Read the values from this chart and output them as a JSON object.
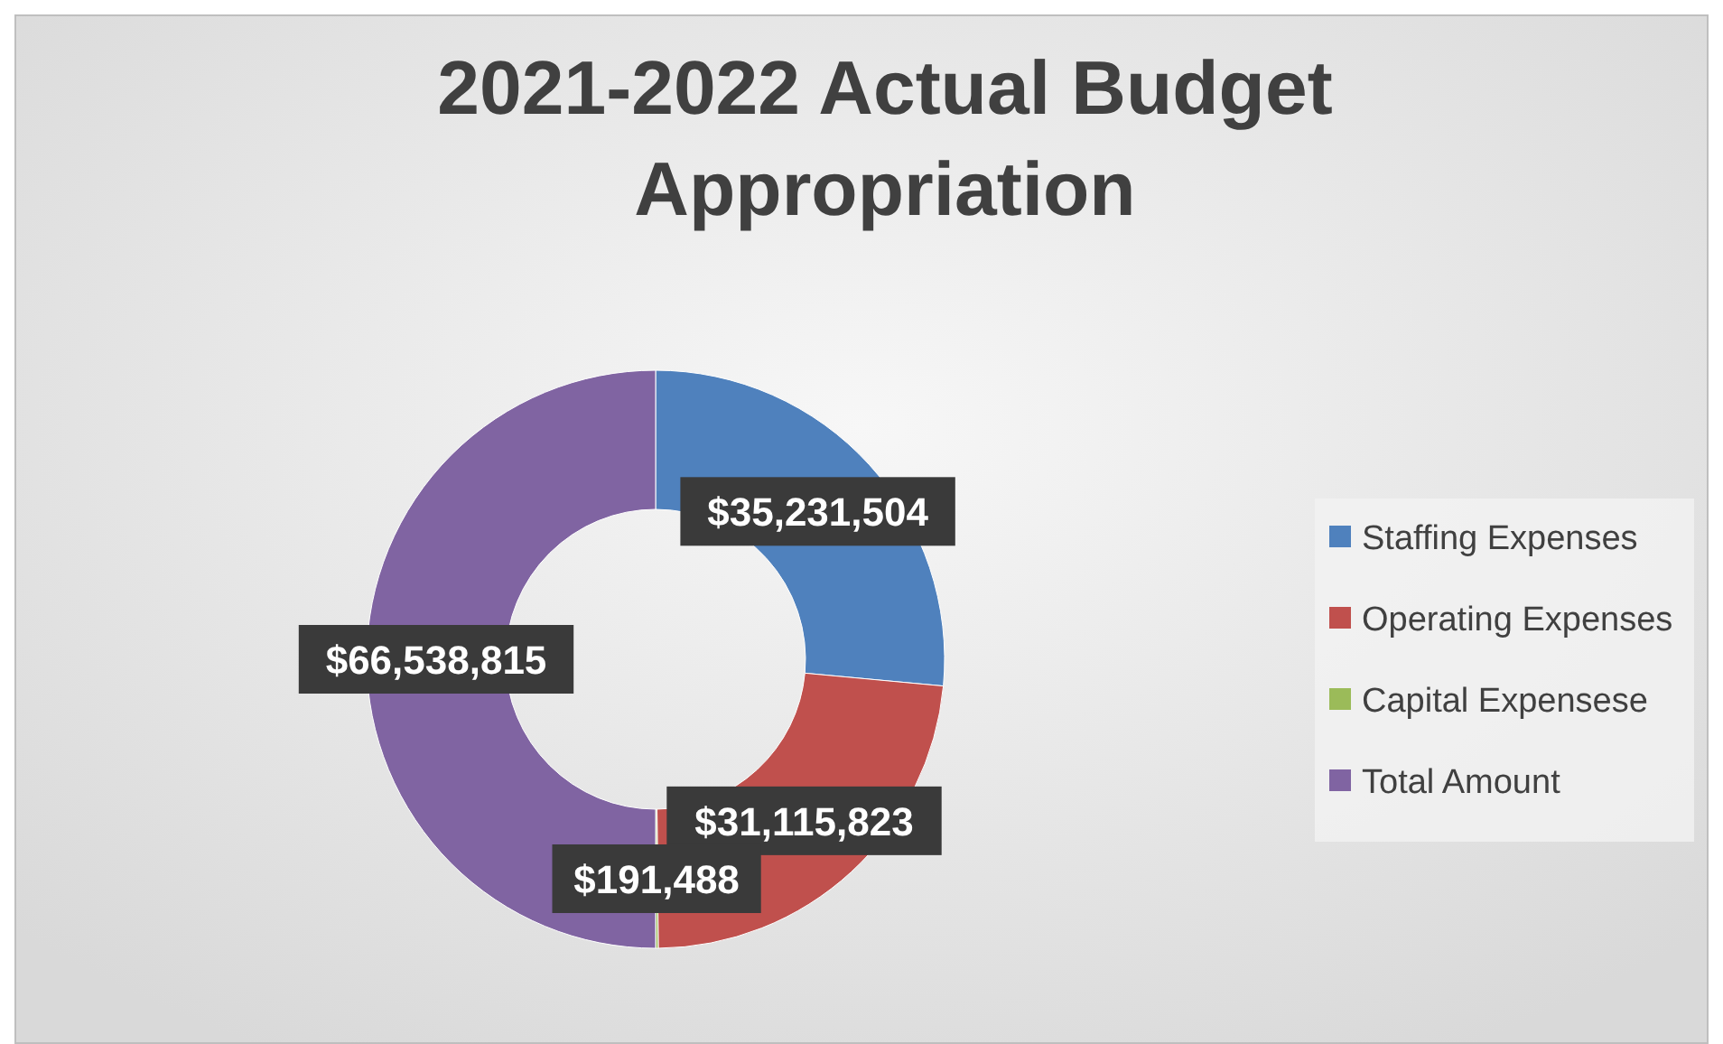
{
  "chart_data": {
    "type": "donut",
    "title": "2021-2022 Actual Budget Appropriation",
    "categories": [
      "Staffing Expenses",
      "Operating Expenses",
      "Capital Expensese",
      "Total Amount"
    ],
    "values": [
      35231504,
      31115823,
      191488,
      66538815
    ],
    "colors": [
      "#4f81bd",
      "#c0504d",
      "#9bbb59",
      "#8064a2"
    ],
    "value_labels": [
      "$35,231,504",
      "$31,115,823",
      "$191,488",
      "$66,538,815"
    ],
    "legend": "right"
  }
}
